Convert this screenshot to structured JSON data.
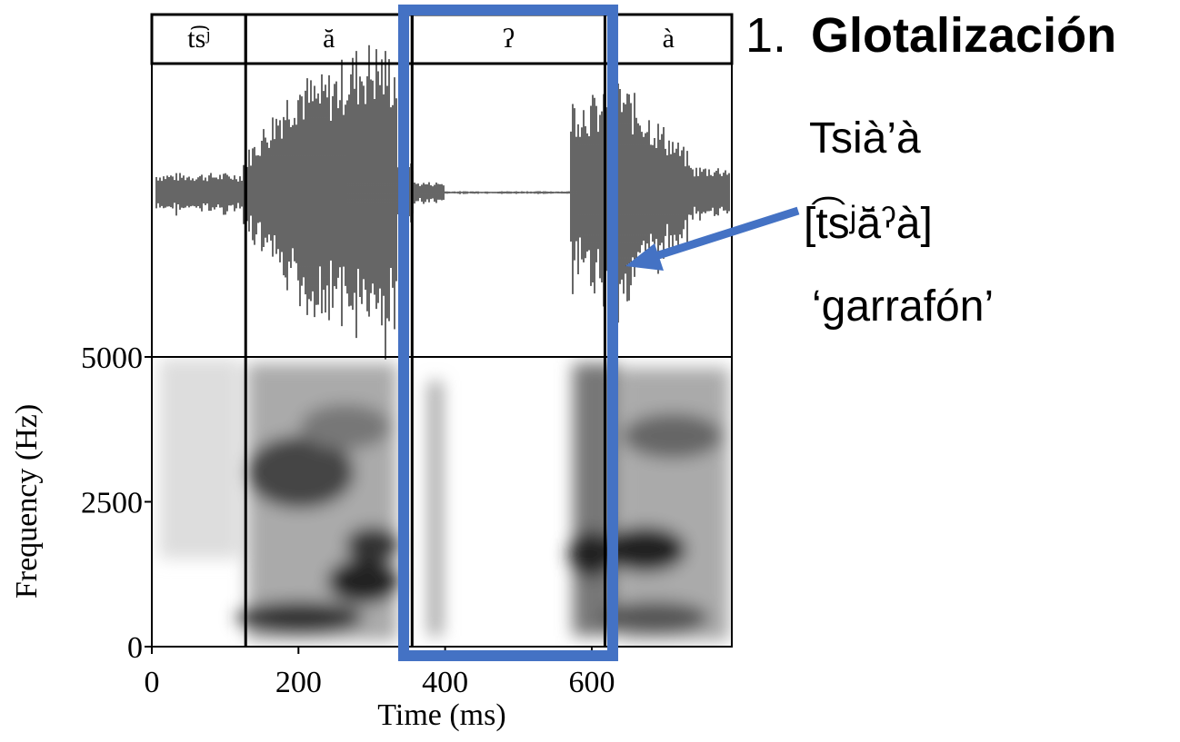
{
  "chart_data": {
    "type": "spectrogram",
    "xlabel": "Time (ms)",
    "ylabel": "Frequency (Hz)",
    "xlim": [
      0,
      791
    ],
    "ylim": [
      0,
      5000
    ],
    "xticks": [
      0,
      200,
      400,
      600
    ],
    "yticks": [
      0,
      2500,
      5000
    ],
    "segments": [
      {
        "label": "t͡sʲ",
        "start": 0,
        "end": 128
      },
      {
        "label": "ă",
        "start": 128,
        "end": 355
      },
      {
        "label": "ʔ",
        "start": 355,
        "end": 618
      },
      {
        "label": "à",
        "start": 618,
        "end": 791
      }
    ],
    "highlight": {
      "start": 336,
      "end": 636,
      "color": "#4472c4"
    },
    "annotation": {
      "number": "1.",
      "title": "Glotalización",
      "word": "Tsià’à",
      "transcription": "[t͡sʲā̆ˀà]",
      "gloss": "‘garrafón’"
    }
  }
}
